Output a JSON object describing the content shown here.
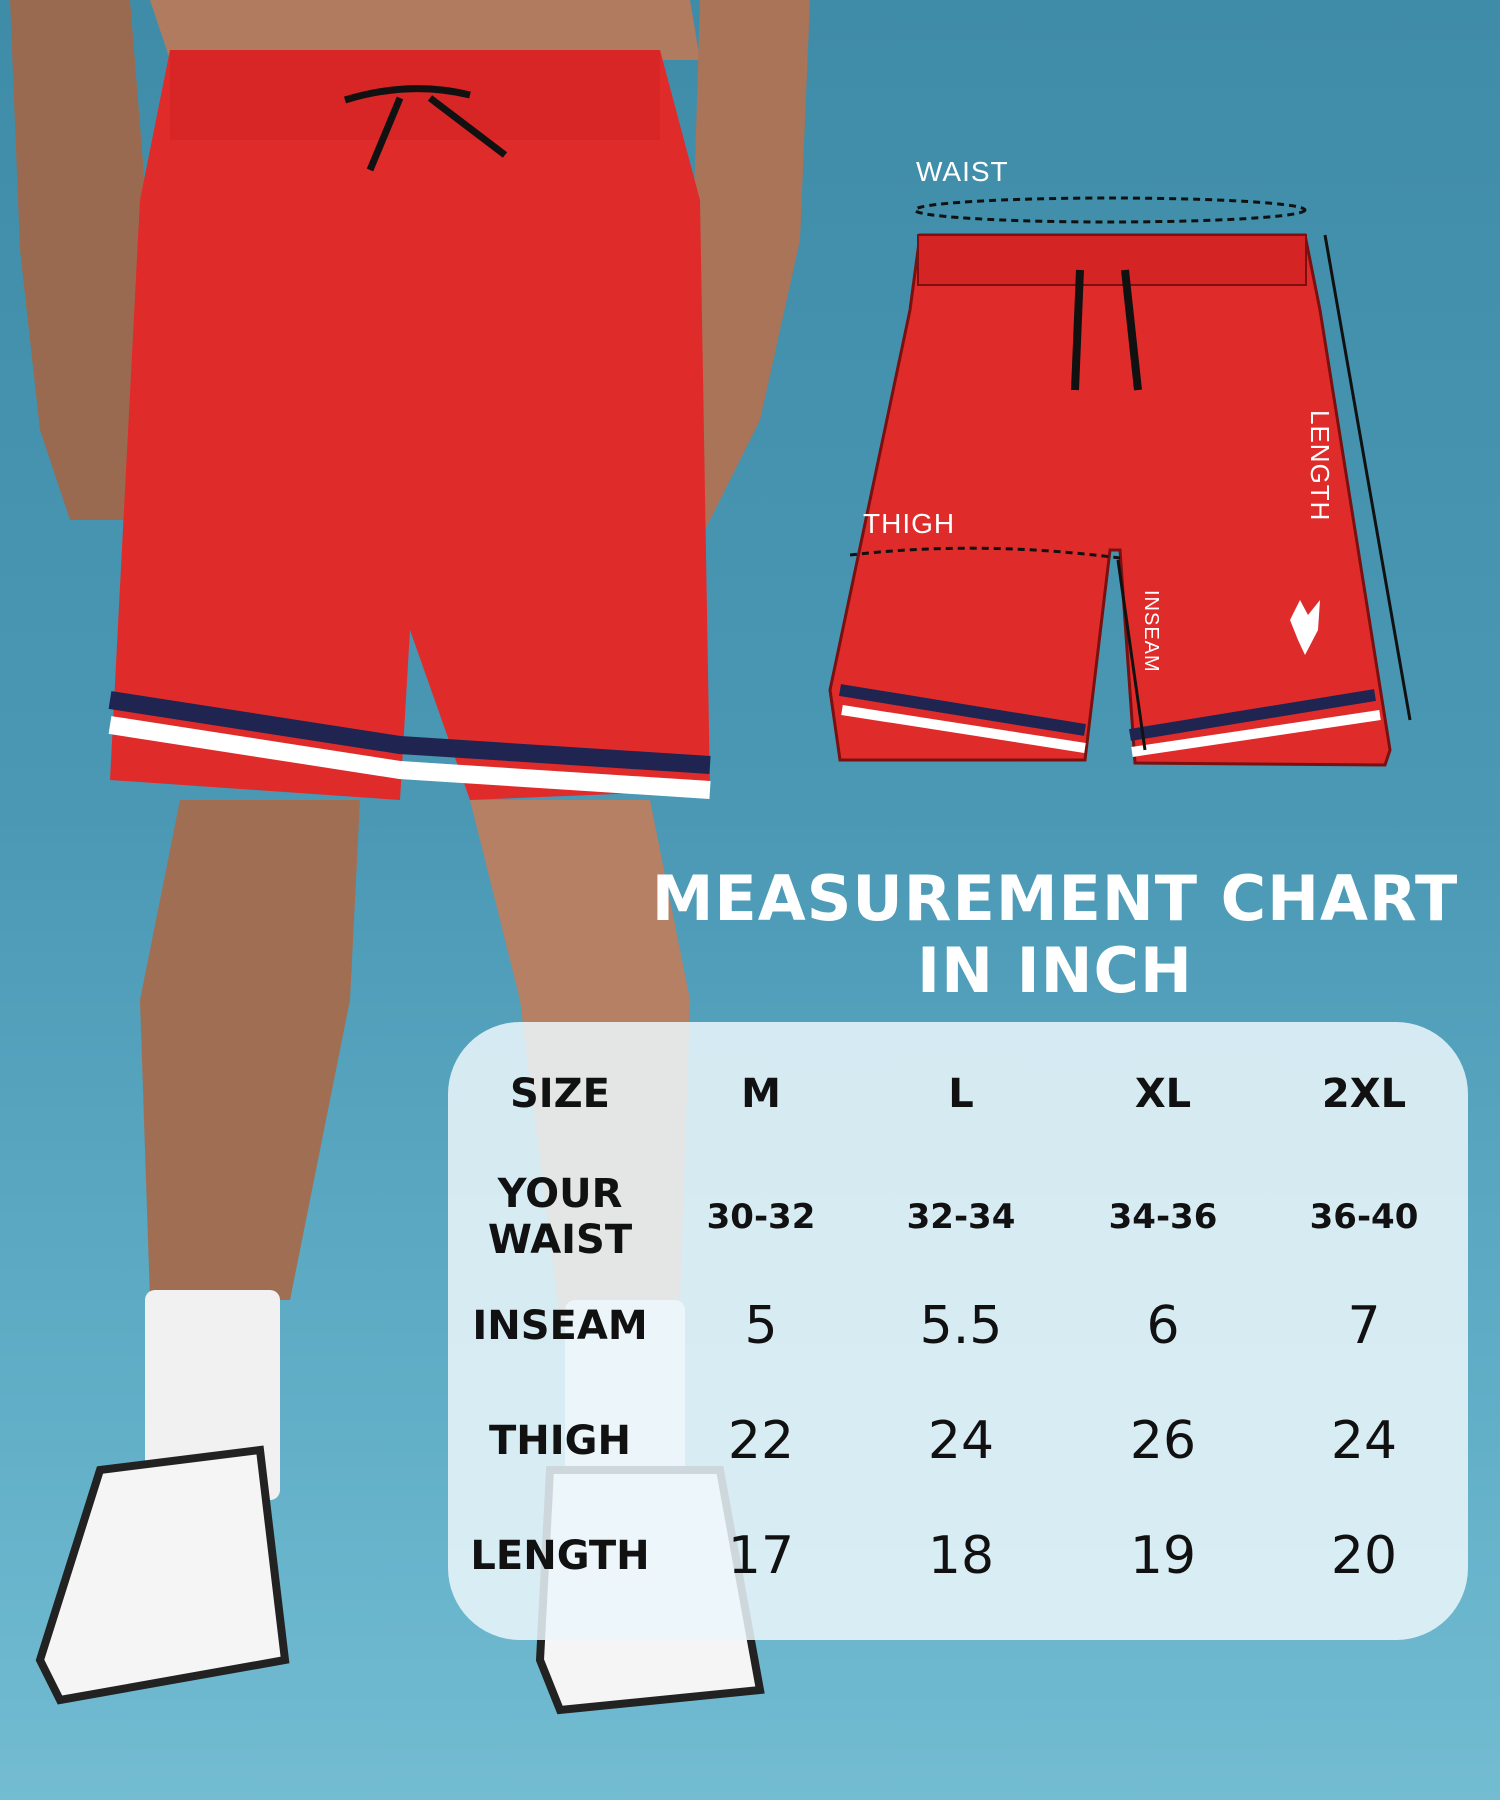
{
  "diagram": {
    "labels": {
      "waist": "WAIST",
      "thigh": "THIGH",
      "length": "LENGTH",
      "inseam": "INSEAM"
    },
    "shorts_color": "#e02b2b",
    "stripe_colors": [
      "#1f2450",
      "#ffffff",
      "#e02b2b"
    ]
  },
  "chart": {
    "title_line1": "MEASUREMENT CHART",
    "title_line2": "IN INCH",
    "header": {
      "label": "SIZE",
      "sizes": [
        "M",
        "L",
        "XL",
        "2XL"
      ]
    },
    "rows": [
      {
        "label_line1": "YOUR",
        "label_line2": "WAIST",
        "values": [
          "30-32",
          "32-34",
          "34-36",
          "36-40"
        ]
      },
      {
        "label_line1": "INSEAM",
        "label_line2": "",
        "values": [
          "5",
          "5.5",
          "6",
          "7"
        ]
      },
      {
        "label_line1": "THIGH",
        "label_line2": "",
        "values": [
          "22",
          "24",
          "26",
          "24"
        ]
      },
      {
        "label_line1": "LENGTH",
        "label_line2": "",
        "values": [
          "17",
          "18",
          "19",
          "20"
        ]
      }
    ]
  },
  "colors": {
    "background": "#4a98b4",
    "card": "#ebf6fa",
    "shorts": "#e02b2b"
  }
}
